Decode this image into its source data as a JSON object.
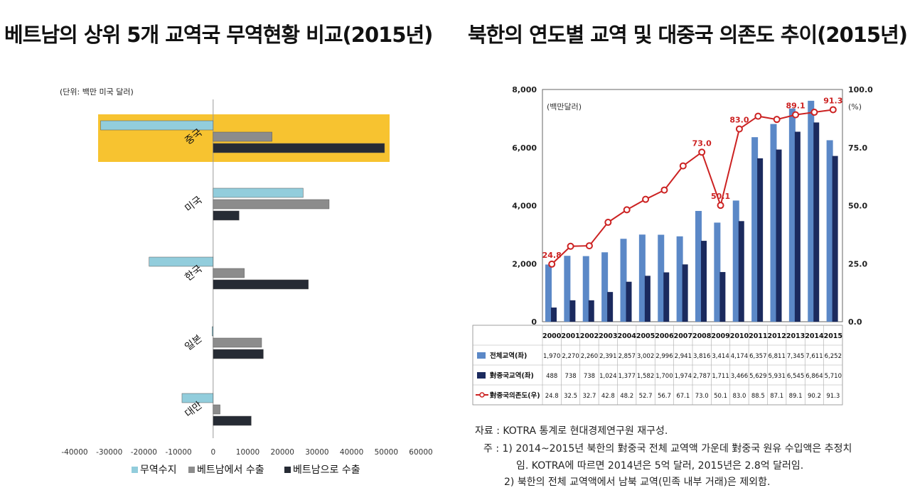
{
  "left_title": "베트남의 상위 5개 교역국 무역현황 비교(2015년)",
  "right_title": "북한의 연도별 교역 및 대중국 의존도 추이(2015년)",
  "chart_data": [
    {
      "type": "bar",
      "orientation": "horizontal",
      "title": "베트남의 상위 5개 교역국 무역현황 비교(2015년)",
      "unit_label": "(단위: 백만 미국 달러)",
      "categories": [
        "중국",
        "미국",
        "한국",
        "일본",
        "대만"
      ],
      "highlight_category": "중국",
      "highlight_color": "#f7c330",
      "series": [
        {
          "name": "무역수지",
          "color": "#92cddc",
          "values": [
            -32500,
            26000,
            -18500,
            -300,
            -9000
          ]
        },
        {
          "name": "베트남에서 수출",
          "color": "#8c8c8c",
          "values": [
            17000,
            33500,
            9000,
            14000,
            2000
          ]
        },
        {
          "name": "베트남으로 수출",
          "color": "#262b34",
          "values": [
            49500,
            7500,
            27500,
            14500,
            11000
          ]
        }
      ],
      "xlim": [
        -40000,
        60000
      ],
      "xticks": [
        -40000,
        -30000,
        -20000,
        -10000,
        0,
        10000,
        20000,
        30000,
        40000,
        50000,
        60000
      ],
      "tick_labels": [
        "-40000",
        "-30000",
        "-20000",
        "-10000",
        "0",
        "10000",
        "20000",
        "30000",
        "40000",
        "50000",
        "60000"
      ],
      "legend_position": "bottom"
    },
    {
      "type": "bar+line",
      "title": "북한의 연도별 교역 및 대중국 의존도 추이(2015년)",
      "unit_label": "(백만달러)",
      "right_unit_label": "(%)",
      "years": [
        "2000",
        "2001",
        "2002",
        "2003",
        "2004",
        "2005",
        "2006",
        "2007",
        "2008",
        "2009",
        "2010",
        "2011",
        "2012",
        "2013",
        "2014",
        "2015"
      ],
      "series": [
        {
          "name": "전체교역(좌)",
          "color": "#5b88c7",
          "values": [
            1970,
            2270,
            2260,
            2391,
            2857,
            3002,
            2996,
            2941,
            3816,
            3414,
            4174,
            6357,
            6811,
            7345,
            7611,
            6252
          ],
          "labels": [
            "1,970",
            "2,270",
            "2,260",
            "2,391",
            "2,857",
            "3,002",
            "2,996",
            "2,941",
            "3,816",
            "3,414",
            "4,174",
            "6,357",
            "6,811",
            "7,345",
            "7,611",
            "6,252"
          ]
        },
        {
          "name": "對중국교역(좌)",
          "color": "#1b2a5e",
          "values": [
            488,
            738,
            738,
            1024,
            1377,
            1582,
            1700,
            1974,
            2787,
            1711,
            3466,
            5629,
            5931,
            6545,
            6864,
            5710
          ],
          "labels": [
            "488",
            "738",
            "738",
            "1,024",
            "1,377",
            "1,582",
            "1,700",
            "1,974",
            "2,787",
            "1,711",
            "3,466",
            "5,629",
            "5,931",
            "6,545",
            "6,864",
            "5,710"
          ]
        },
        {
          "name": "對중국의존도(우)",
          "color": "#cc2222",
          "values": [
            24.8,
            32.5,
            32.7,
            42.8,
            48.2,
            52.7,
            56.7,
            67.1,
            73.0,
            50.1,
            83.0,
            88.5,
            87.1,
            89.1,
            90.2,
            91.3
          ],
          "labels": [
            "24.8",
            "32.5",
            "32.7",
            "42.8",
            "48.2",
            "52.7",
            "56.7",
            "67.1",
            "73.0",
            "50.1",
            "83.0",
            "88.5",
            "87.1",
            "89.1",
            "90.2",
            "91.3"
          ]
        }
      ],
      "annotated_points": [
        {
          "index": 0,
          "text": "24.8"
        },
        {
          "index": 8,
          "text": "73.0"
        },
        {
          "index": 9,
          "text": "50.1"
        },
        {
          "index": 10,
          "text": "83.0"
        },
        {
          "index": 13,
          "text": "89.1"
        },
        {
          "index": 15,
          "text": "91.3"
        }
      ],
      "ylim_left": [
        0,
        8000
      ],
      "yticks_left": [
        "0",
        "2,000",
        "4,000",
        "6,000",
        "8,000"
      ],
      "ylim_right": [
        0,
        100
      ],
      "yticks_right": [
        "0.0",
        "25.0",
        "50.0",
        "75.0",
        "100.0"
      ]
    }
  ],
  "source_note": {
    "source": "자료 : KOTRA 통계로 현대경제연구원 재구성.",
    "note1": "주 : 1) 2014~2015년 북한의 對중국 전체 교역액 가운데 對중국 원유 수입액은 추정치",
    "note1b": "임. KOTRA에 따르면 2014년은 5억 달러, 2015년은 2.8억 달러임.",
    "note2": "2) 북한의 전체 교역액에서 남북 교역(민족 내부 거래)은 제외함."
  }
}
